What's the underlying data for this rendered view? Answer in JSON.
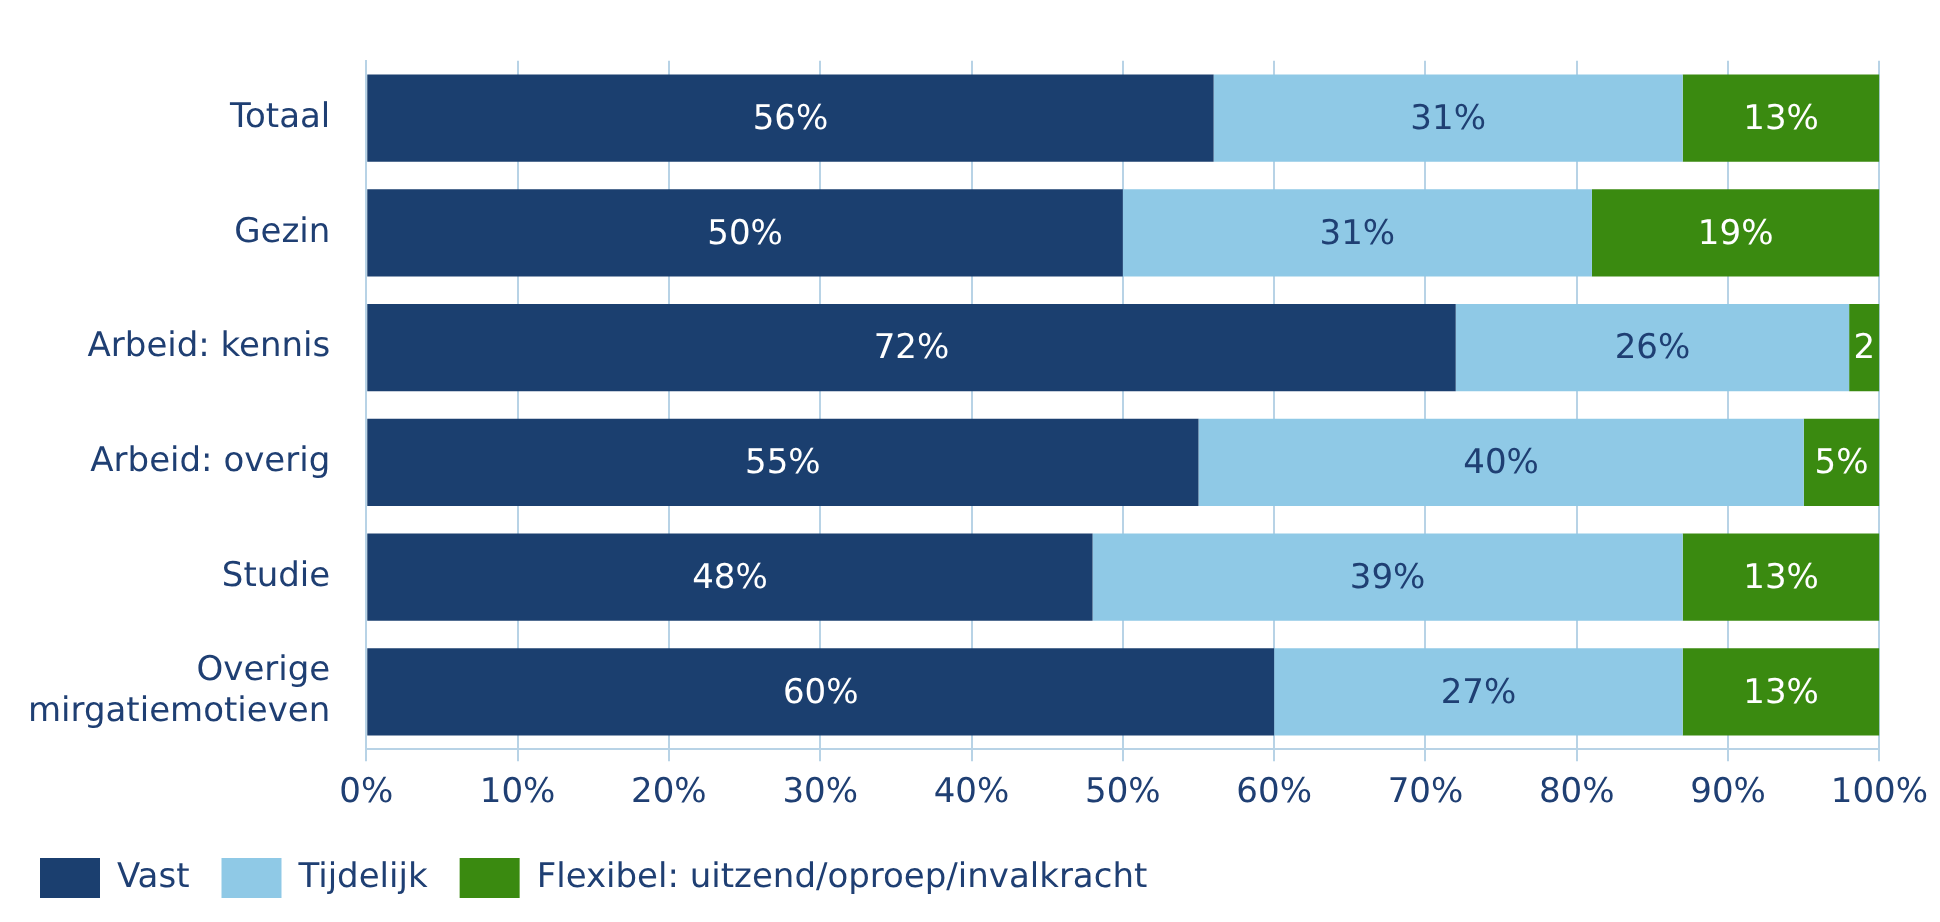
{
  "chart_data": {
    "type": "bar",
    "orientation": "horizontal",
    "stacked": true,
    "categories": [
      "Totaal",
      "Gezin",
      "Arbeid: kennis",
      "Arbeid: overig",
      "Studie",
      "Overige mirgatiemotieven"
    ],
    "series": [
      {
        "name": "Vast",
        "color": "#1b3f6f",
        "values": [
          56,
          50,
          72,
          55,
          48,
          60
        ],
        "value_labels": [
          "56%",
          "50%",
          "72%",
          "55%",
          "48%",
          "60%"
        ]
      },
      {
        "name": "Tijdelijk",
        "color": "#8fc9e6",
        "values": [
          31,
          31,
          26,
          40,
          39,
          27
        ],
        "value_labels": [
          "31%",
          "31%",
          "26%",
          "40%",
          "39%",
          "27%"
        ]
      },
      {
        "name": "Flexibel: uitzend/oproep/invalkracht",
        "color": "#3a8a10",
        "values": [
          13,
          19,
          2,
          5,
          13,
          13
        ],
        "value_labels": [
          "13%",
          "19%",
          "2",
          "5%",
          "13%",
          "13%"
        ]
      }
    ],
    "xlim": [
      0,
      100
    ],
    "xticks": [
      {
        "value": 0,
        "label": "0%"
      },
      {
        "value": 10,
        "label": "10%"
      },
      {
        "value": 20,
        "label": "20%"
      },
      {
        "value": 30,
        "label": "30%"
      },
      {
        "value": 40,
        "label": "40%"
      },
      {
        "value": 50,
        "label": "50%"
      },
      {
        "value": 60,
        "label": "60%"
      },
      {
        "value": 70,
        "label": "70%"
      },
      {
        "value": 80,
        "label": "80%"
      },
      {
        "value": 90,
        "label": "90%"
      },
      {
        "value": 100,
        "label": "100%"
      }
    ],
    "grid": "x",
    "legend": "bottom left"
  }
}
